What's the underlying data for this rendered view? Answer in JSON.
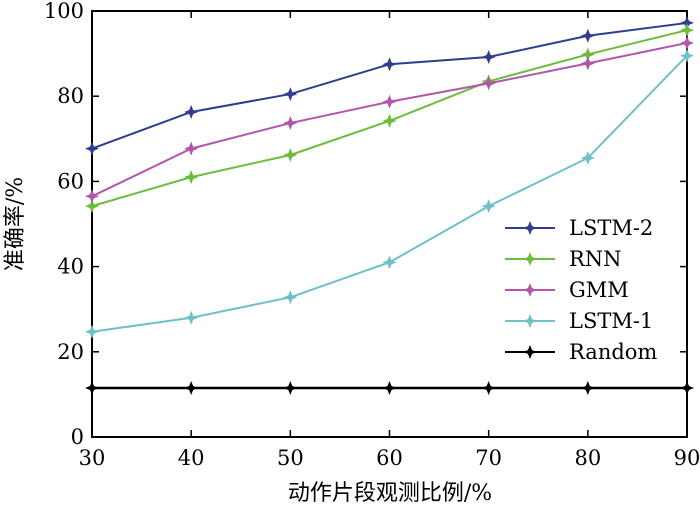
{
  "chart_data": {
    "type": "line",
    "title": "",
    "xlabel": "动作片段观测比例/%",
    "ylabel": "准确率/%",
    "x": [
      30,
      40,
      50,
      60,
      70,
      80,
      90
    ],
    "xlim": [
      30,
      90
    ],
    "ylim": [
      0,
      100
    ],
    "xticks": [
      "30",
      "40",
      "50",
      "60",
      "70",
      "80",
      "90"
    ],
    "yticks": [
      "0",
      "20",
      "40",
      "60",
      "80",
      "100"
    ],
    "grid": false,
    "legend_position": "bottom-right",
    "series": [
      {
        "name": "LSTM-2",
        "color": "#2e3d8f",
        "values": [
          67.7,
          76.3,
          80.5,
          87.5,
          89.2,
          94.2,
          97.2
        ]
      },
      {
        "name": "RNN",
        "color": "#6cbd3c",
        "values": [
          54.2,
          61.0,
          66.2,
          74.2,
          83.5,
          89.8,
          95.5
        ]
      },
      {
        "name": "GMM",
        "color": "#b256ac",
        "values": [
          56.5,
          67.7,
          73.7,
          78.7,
          83.0,
          87.7,
          92.5
        ]
      },
      {
        "name": "LSTM-1",
        "color": "#70c0c8",
        "values": [
          24.7,
          28.0,
          32.8,
          41.0,
          54.2,
          65.5,
          89.5
        ]
      },
      {
        "name": "Random",
        "color": "#000000",
        "values": [
          11.5,
          11.5,
          11.5,
          11.5,
          11.5,
          11.5,
          11.5
        ]
      }
    ]
  }
}
